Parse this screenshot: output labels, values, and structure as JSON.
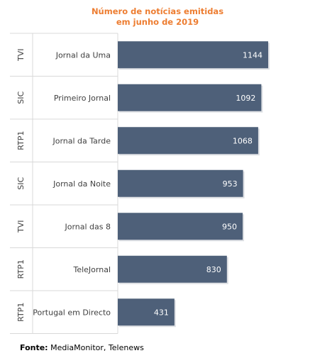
{
  "chart_data": {
    "type": "bar",
    "orientation": "horizontal",
    "title": "Número de notícias emitidas",
    "subtitle": "em junho de 2019",
    "channels": [
      "TVI",
      "SIC",
      "RTP1",
      "SIC",
      "TVI",
      "RTP1",
      "RTP1"
    ],
    "categories": [
      "Jornal da Uma",
      "Primeiro Jornal",
      "Jornal da Tarde",
      "Jornal da Noite",
      "Jornal das 8",
      "TeleJornal",
      "Portugal em Directo"
    ],
    "values": [
      1144,
      1092,
      1068,
      953,
      950,
      830,
      431
    ],
    "xlim": [
      0,
      1144
    ],
    "bar_color": "#4e6079",
    "label_color": "#ffffff"
  },
  "source": {
    "label": "Fonte:",
    "text": "MediaMonitor, Telenews"
  }
}
